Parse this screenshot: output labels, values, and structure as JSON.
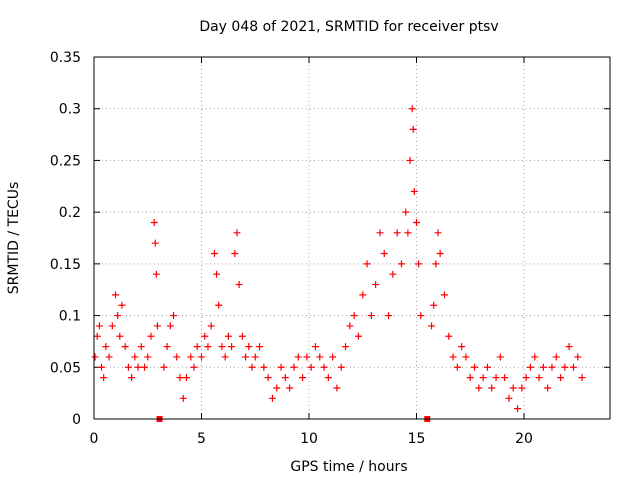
{
  "chart_data": {
    "type": "scatter",
    "title": "Day 048 of 2021, SRMTID for receiver ptsv",
    "xlabel": "GPS time / hours",
    "ylabel": "SRMTID / TECUs",
    "xlim": [
      0,
      24
    ],
    "ylim": [
      0,
      0.35
    ],
    "grid": true,
    "marker": "+",
    "color": "#ff0000",
    "xticks": [
      0,
      5,
      10,
      15,
      20
    ],
    "xtick_labels": [
      "0",
      "5",
      "10",
      "15",
      "20"
    ],
    "yticks": [
      0,
      0.05,
      0.1,
      0.15,
      0.2,
      0.25,
      0.3,
      0.35
    ],
    "ytick_labels": [
      "0",
      "0.05",
      "0.1",
      "0.15",
      "0.2",
      "0.25",
      "0.3",
      "0.35"
    ],
    "gap_markers_x": [
      3.05,
      15.5
    ],
    "series": [
      {
        "name": "SRMTID",
        "points": [
          [
            0.05,
            0.06
          ],
          [
            0.15,
            0.08
          ],
          [
            0.25,
            0.09
          ],
          [
            0.35,
            0.05
          ],
          [
            0.45,
            0.04
          ],
          [
            0.55,
            0.07
          ],
          [
            0.7,
            0.06
          ],
          [
            0.85,
            0.09
          ],
          [
            1.0,
            0.12
          ],
          [
            1.1,
            0.1
          ],
          [
            1.2,
            0.08
          ],
          [
            1.3,
            0.11
          ],
          [
            1.45,
            0.07
          ],
          [
            1.6,
            0.05
          ],
          [
            1.75,
            0.04
          ],
          [
            1.9,
            0.06
          ],
          [
            2.05,
            0.05
          ],
          [
            2.2,
            0.07
          ],
          [
            2.35,
            0.05
          ],
          [
            2.5,
            0.06
          ],
          [
            2.65,
            0.08
          ],
          [
            2.8,
            0.19
          ],
          [
            2.85,
            0.17
          ],
          [
            2.9,
            0.14
          ],
          [
            2.95,
            0.09
          ],
          [
            3.25,
            0.05
          ],
          [
            3.4,
            0.07
          ],
          [
            3.55,
            0.09
          ],
          [
            3.7,
            0.1
          ],
          [
            3.85,
            0.06
          ],
          [
            4.0,
            0.04
          ],
          [
            4.15,
            0.02
          ],
          [
            4.3,
            0.04
          ],
          [
            4.5,
            0.06
          ],
          [
            4.65,
            0.05
          ],
          [
            4.8,
            0.07
          ],
          [
            5.0,
            0.06
          ],
          [
            5.15,
            0.08
          ],
          [
            5.3,
            0.07
          ],
          [
            5.45,
            0.09
          ],
          [
            5.6,
            0.16
          ],
          [
            5.7,
            0.14
          ],
          [
            5.8,
            0.11
          ],
          [
            5.95,
            0.07
          ],
          [
            6.1,
            0.06
          ],
          [
            6.25,
            0.08
          ],
          [
            6.4,
            0.07
          ],
          [
            6.55,
            0.16
          ],
          [
            6.65,
            0.18
          ],
          [
            6.75,
            0.13
          ],
          [
            6.9,
            0.08
          ],
          [
            7.05,
            0.06
          ],
          [
            7.2,
            0.07
          ],
          [
            7.35,
            0.05
          ],
          [
            7.5,
            0.06
          ],
          [
            7.7,
            0.07
          ],
          [
            7.9,
            0.05
          ],
          [
            8.1,
            0.04
          ],
          [
            8.3,
            0.02
          ],
          [
            8.5,
            0.03
          ],
          [
            8.7,
            0.05
          ],
          [
            8.9,
            0.04
          ],
          [
            9.1,
            0.03
          ],
          [
            9.3,
            0.05
          ],
          [
            9.5,
            0.06
          ],
          [
            9.7,
            0.04
          ],
          [
            9.9,
            0.06
          ],
          [
            10.1,
            0.05
          ],
          [
            10.3,
            0.07
          ],
          [
            10.5,
            0.06
          ],
          [
            10.7,
            0.05
          ],
          [
            10.9,
            0.04
          ],
          [
            11.1,
            0.06
          ],
          [
            11.3,
            0.03
          ],
          [
            11.5,
            0.05
          ],
          [
            11.7,
            0.07
          ],
          [
            11.9,
            0.09
          ],
          [
            12.1,
            0.1
          ],
          [
            12.3,
            0.08
          ],
          [
            12.5,
            0.12
          ],
          [
            12.7,
            0.15
          ],
          [
            12.9,
            0.1
          ],
          [
            13.1,
            0.13
          ],
          [
            13.3,
            0.18
          ],
          [
            13.5,
            0.16
          ],
          [
            13.7,
            0.1
          ],
          [
            13.9,
            0.14
          ],
          [
            14.1,
            0.18
          ],
          [
            14.3,
            0.15
          ],
          [
            14.5,
            0.2
          ],
          [
            14.6,
            0.18
          ],
          [
            14.7,
            0.25
          ],
          [
            14.8,
            0.3
          ],
          [
            14.85,
            0.28
          ],
          [
            14.9,
            0.22
          ],
          [
            15.0,
            0.19
          ],
          [
            15.1,
            0.15
          ],
          [
            15.2,
            0.1
          ],
          [
            15.7,
            0.09
          ],
          [
            15.8,
            0.11
          ],
          [
            15.9,
            0.15
          ],
          [
            16.0,
            0.18
          ],
          [
            16.1,
            0.16
          ],
          [
            16.3,
            0.12
          ],
          [
            16.5,
            0.08
          ],
          [
            16.7,
            0.06
          ],
          [
            16.9,
            0.05
          ],
          [
            17.1,
            0.07
          ],
          [
            17.3,
            0.06
          ],
          [
            17.5,
            0.04
          ],
          [
            17.7,
            0.05
          ],
          [
            17.9,
            0.03
          ],
          [
            18.1,
            0.04
          ],
          [
            18.3,
            0.05
          ],
          [
            18.5,
            0.03
          ],
          [
            18.7,
            0.04
          ],
          [
            18.9,
            0.06
          ],
          [
            19.1,
            0.04
          ],
          [
            19.3,
            0.02
          ],
          [
            19.5,
            0.03
          ],
          [
            19.7,
            0.01
          ],
          [
            19.9,
            0.03
          ],
          [
            20.1,
            0.04
          ],
          [
            20.3,
            0.05
          ],
          [
            20.5,
            0.06
          ],
          [
            20.7,
            0.04
          ],
          [
            20.9,
            0.05
          ],
          [
            21.1,
            0.03
          ],
          [
            21.3,
            0.05
          ],
          [
            21.5,
            0.06
          ],
          [
            21.7,
            0.04
          ],
          [
            21.9,
            0.05
          ],
          [
            22.1,
            0.07
          ],
          [
            22.3,
            0.05
          ],
          [
            22.5,
            0.06
          ],
          [
            22.7,
            0.04
          ]
        ]
      }
    ]
  }
}
